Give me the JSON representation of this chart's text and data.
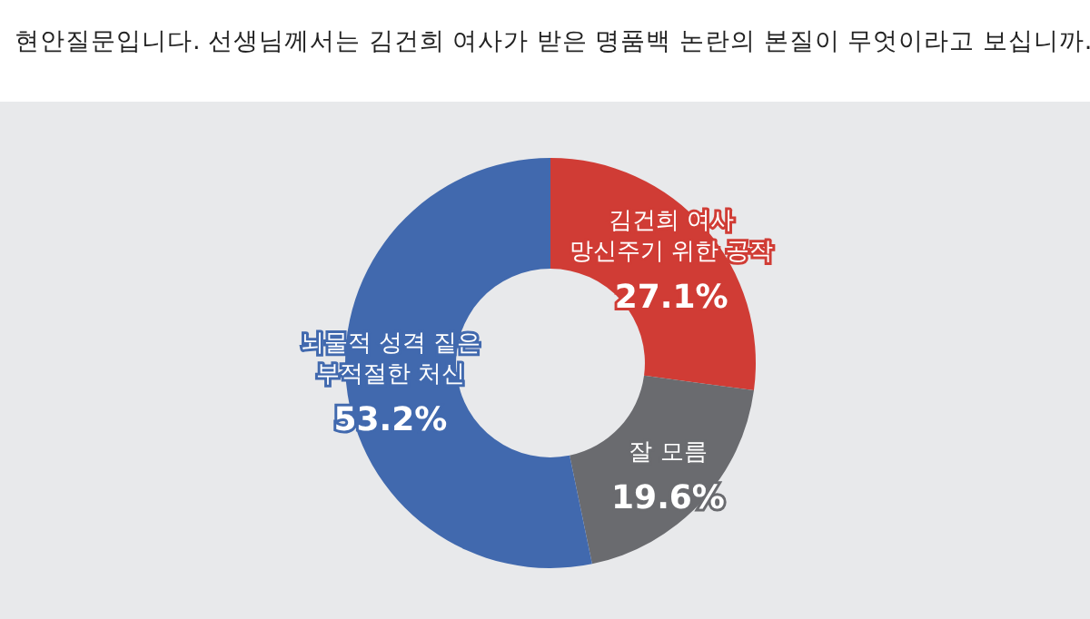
{
  "chart_data": {
    "type": "donut",
    "title": "현안질문입니다. 선생님께서는 김건희 여사가 받은 명품백 논란의 본질이 무엇이라고 보십니까.",
    "categories": [
      "김건희 여사\n망신주기 위한 공작",
      "잘 모름",
      "뇌물적 성격 짙은\n부적절한 처신"
    ],
    "values": [
      27.1,
      19.6,
      53.2
    ],
    "colors": [
      "#d03c35",
      "#6a6b6f",
      "#4169ae"
    ],
    "value_labels": [
      "27.1%",
      "19.6%",
      "53.2%"
    ]
  }
}
